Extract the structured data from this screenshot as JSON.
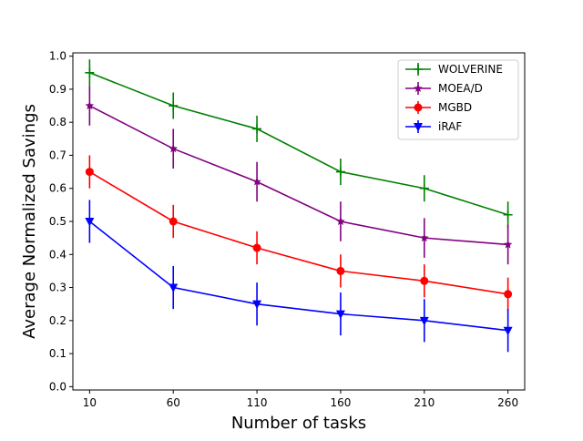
{
  "chart_data": {
    "type": "line",
    "xlabel": "Number of tasks",
    "ylabel": "Average Normalized Savings",
    "x": [
      10,
      60,
      110,
      160,
      210,
      260
    ],
    "xlim": [
      0,
      270
    ],
    "ylim": [
      -0.01,
      1.01
    ],
    "x_ticks": [
      "10",
      "60",
      "110",
      "160",
      "210",
      "260"
    ],
    "y_ticks": [
      "0.0",
      "0.1",
      "0.2",
      "0.3",
      "0.4",
      "0.5",
      "0.6",
      "0.7",
      "0.8",
      "0.9",
      "1.0"
    ],
    "grid": false,
    "legend_position": "top-right",
    "series": [
      {
        "name": "WOLVERINE",
        "color": "#008000",
        "marker": "plus",
        "values": [
          0.95,
          0.85,
          0.78,
          0.65,
          0.6,
          0.52
        ],
        "error": [
          0.04,
          0.04,
          0.04,
          0.04,
          0.04,
          0.04
        ]
      },
      {
        "name": "MOEA/D",
        "color": "#800080",
        "marker": "star",
        "values": [
          0.85,
          0.72,
          0.62,
          0.5,
          0.45,
          0.43
        ],
        "error": [
          0.06,
          0.06,
          0.06,
          0.06,
          0.06,
          0.06
        ]
      },
      {
        "name": "MGBD",
        "color": "#ff0000",
        "marker": "circle",
        "values": [
          0.65,
          0.5,
          0.42,
          0.35,
          0.32,
          0.28
        ],
        "error": [
          0.05,
          0.05,
          0.05,
          0.05,
          0.05,
          0.05
        ]
      },
      {
        "name": "iRAF",
        "color": "#0000ff",
        "marker": "triangle-down",
        "values": [
          0.5,
          0.3,
          0.25,
          0.22,
          0.2,
          0.17
        ],
        "error": [
          0.065,
          0.065,
          0.065,
          0.065,
          0.065,
          0.065
        ]
      }
    ]
  }
}
